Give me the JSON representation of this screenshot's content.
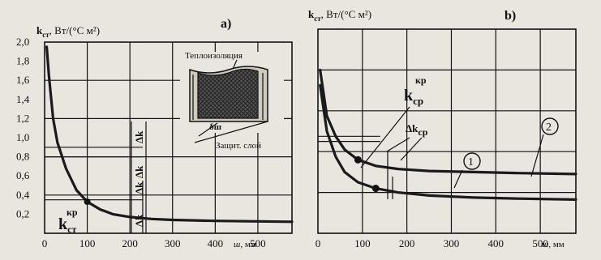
{
  "chart_data": [
    {
      "panel": "a)",
      "type": "line",
      "ylabel_main": "k",
      "ylabel_sub": "ст",
      "ylabel_units": ", Вт/(°С м²)",
      "xlabel_sub": "ш",
      "xlabel_units": ", мм",
      "xlim": [
        0,
        580
      ],
      "ylim": [
        0,
        2.0
      ],
      "x_ticks": [
        "0",
        "100",
        "200",
        "300",
        "400",
        "500"
      ],
      "y_ticks": [
        "0,2",
        "0,4",
        "0,6",
        "0,8",
        "1,0",
        "1,2",
        "1,4",
        "1,6",
        "1,8",
        "2,0"
      ],
      "series": [
        {
          "x": [
            5,
            10,
            20,
            30,
            50,
            75,
            100,
            130,
            160,
            200,
            250,
            300,
            400,
            500,
            580
          ],
          "y": [
            1.95,
            1.65,
            1.2,
            0.95,
            0.68,
            0.45,
            0.33,
            0.25,
            0.2,
            0.17,
            0.15,
            0.14,
            0.13,
            0.125,
            0.12
          ]
        }
      ],
      "point": {
        "x": 100,
        "y": 0.33
      },
      "annotations": {
        "kcr_main": "k",
        "kcr_sub": "ст",
        "kcr_sup": "кр",
        "dk_labels": [
          "Δk",
          "Δk",
          "Δk",
          "Δk"
        ],
        "inset_insulation": "Теплоизоляция",
        "inset_delta": "δш",
        "inset_layer": "Защит. слой"
      }
    },
    {
      "panel": "b)",
      "type": "line",
      "ylabel_main": "k",
      "ylabel_sub": "ст",
      "ylabel_units": ", Вт/(°С м²)",
      "xlabel_sub": "ш",
      "xlabel_units": ", мм",
      "xlim": [
        0,
        580
      ],
      "x_ticks": [
        "0",
        "100",
        "200",
        "300",
        "400",
        "500"
      ],
      "series": [
        {
          "name": "1",
          "x": [
            5,
            20,
            40,
            60,
            90,
            130,
            180,
            250,
            350,
            450,
            580
          ],
          "y": [
            1.45,
            1.0,
            0.75,
            0.6,
            0.5,
            0.44,
            0.4,
            0.37,
            0.35,
            0.34,
            0.33
          ]
        },
        {
          "name": "2",
          "x": [
            5,
            20,
            40,
            60,
            90,
            130,
            180,
            250,
            350,
            450,
            580
          ],
          "y": [
            1.6,
            1.15,
            0.95,
            0.82,
            0.72,
            0.66,
            0.63,
            0.61,
            0.6,
            0.59,
            0.58
          ]
        }
      ],
      "points": [
        {
          "x": 90,
          "y": 0.72
        },
        {
          "x": 130,
          "y": 0.44
        }
      ],
      "annotations": {
        "kcp_main": "k",
        "kcp_sub": "ср",
        "kcp_sup": "кр",
        "dkcp_main": "Δk",
        "dkcp_sub": "ср",
        "circle_1": "1",
        "circle_2": "2"
      }
    }
  ]
}
